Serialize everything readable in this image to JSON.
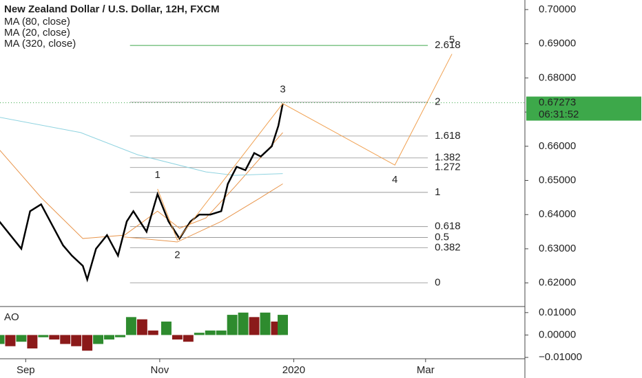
{
  "chart_data": [
    {
      "type": "line",
      "title": "New Zealand Dollar / U.S. Dollar, 12H, FXCM",
      "xlim": [
        -11.7,
        227.2
      ],
      "xticks": [
        {
          "value": 0,
          "label": "Sep"
        },
        {
          "value": 61,
          "label": "Nov"
        },
        {
          "value": 122,
          "label": "2020"
        },
        {
          "value": 182,
          "label": "Mar"
        }
      ],
      "ylim": [
        0.6133,
        0.7028
      ],
      "yticks": [
        {
          "value": 0.62,
          "label": "0.62000"
        },
        {
          "value": 0.63,
          "label": "0.63000"
        },
        {
          "value": 0.64,
          "label": "0.64000"
        },
        {
          "value": 0.65,
          "label": "0.65000"
        },
        {
          "value": 0.66,
          "label": "0.66000"
        },
        {
          "value": 0.67,
          "label": "0.67000"
        },
        {
          "value": 0.68,
          "label": "0.68000"
        },
        {
          "value": 0.69,
          "label": "0.69000"
        },
        {
          "value": 0.7,
          "label": "0.70000"
        }
      ],
      "price": {
        "color": "#000000",
        "x": [
          -12,
          -7,
          -2,
          2,
          7,
          12,
          17,
          21,
          26,
          28,
          32,
          37,
          42,
          46,
          49,
          55,
          60,
          65,
          70,
          75,
          79,
          84,
          89,
          92,
          96,
          100,
          104,
          107,
          112,
          115,
          117
        ],
        "values": [
          0.638,
          0.634,
          0.63,
          0.641,
          0.643,
          0.637,
          0.631,
          0.628,
          0.625,
          0.621,
          0.63,
          0.634,
          0.628,
          0.638,
          0.641,
          0.635,
          0.646,
          0.638,
          0.633,
          0.638,
          0.64,
          0.64,
          0.641,
          0.649,
          0.654,
          0.653,
          0.658,
          0.657,
          0.66,
          0.666,
          0.6725
        ]
      },
      "series": [
        {
          "name": "MA (80, close)",
          "color": "#e8944a",
          "x": [
            44,
            69,
            89,
            107,
            117
          ],
          "values": [
            0.6335,
            0.632,
            0.638,
            0.645,
            0.649
          ]
        },
        {
          "name": "MA (20, close)",
          "color": "#e8944a",
          "x": [
            -12,
            7,
            26,
            45,
            60,
            70,
            82,
            95,
            117
          ],
          "values": [
            0.659,
            0.645,
            0.633,
            0.634,
            0.641,
            0.636,
            0.639,
            0.648,
            0.664
          ]
        },
        {
          "name": "MA (320, close)",
          "color": "#8fd3e0",
          "x": [
            -12,
            25,
            51,
            82,
            95,
            117
          ],
          "values": [
            0.6685,
            0.664,
            0.6575,
            0.6525,
            0.6515,
            0.652
          ]
        }
      ],
      "fib_levels": [
        {
          "value": 0.62,
          "label": "0"
        },
        {
          "value": 0.6303,
          "label": "0.382"
        },
        {
          "value": 0.6333,
          "label": "0.5"
        },
        {
          "value": 0.6365,
          "label": "0.618"
        },
        {
          "value": 0.6465,
          "label": "1"
        },
        {
          "value": 0.6538,
          "label": "1.272"
        },
        {
          "value": 0.6566,
          "label": "1.382"
        },
        {
          "value": 0.663,
          "label": "1.618"
        },
        {
          "value": 0.6729,
          "label": "2"
        },
        {
          "value": 0.6895,
          "label": "2.618"
        }
      ],
      "waves": {
        "labels": [
          "1",
          "2",
          "3",
          "4",
          "5"
        ],
        "x": [
          60,
          69,
          117,
          168,
          194
        ],
        "y": [
          0.6475,
          0.6325,
          0.6725,
          0.6545,
          0.687
        ],
        "color": "#f0a050"
      },
      "last_price": {
        "value": 0.67273,
        "label": "0.67273",
        "color": "#3da84a"
      },
      "countdown": "06:31:52"
    },
    {
      "type": "bar",
      "title": "AO",
      "ylim": [
        -0.0106,
        0.0124
      ],
      "yticks": [
        {
          "value": 0.01,
          "label": "0.01000"
        },
        {
          "value": 0,
          "label": "0.00000"
        },
        {
          "value": -0.01,
          "label": "−0.01000"
        }
      ],
      "up_color": "#2e8b2e",
      "down_color": "#8b1a1a",
      "x": [
        -12,
        -7,
        -2,
        3,
        8,
        13,
        18,
        23,
        28,
        33,
        38,
        43,
        48,
        53,
        58,
        64,
        69,
        74,
        79,
        84,
        89,
        94,
        99,
        104,
        109,
        114,
        117
      ],
      "values": [
        -0.004,
        -0.005,
        -0.003,
        -0.006,
        -0.001,
        -0.002,
        -0.004,
        -0.005,
        -0.007,
        -0.004,
        -0.002,
        -0.001,
        0.008,
        0.007,
        0.002,
        0.006,
        -0.002,
        -0.003,
        0.001,
        0.002,
        0.002,
        0.009,
        0.01,
        0.008,
        0.01,
        0.006,
        0.009
      ]
    }
  ]
}
